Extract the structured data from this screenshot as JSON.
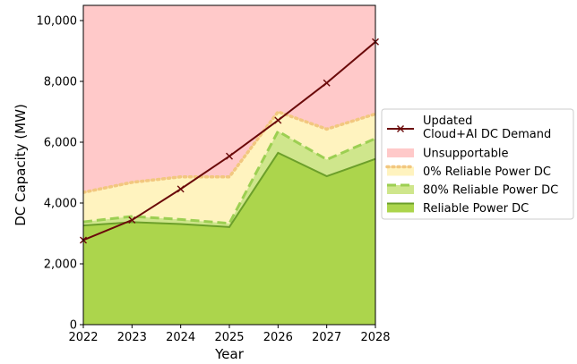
{
  "chart_data": {
    "type": "area",
    "xlabel": "Year",
    "ylabel": "DC Capacity (MW)",
    "x": [
      2022,
      2023,
      2024,
      2025,
      2026,
      2027,
      2028
    ],
    "xlim": [
      2022,
      2028
    ],
    "ylim": [
      0,
      10500
    ],
    "yticks": [
      0,
      2000,
      4000,
      6000,
      8000,
      10000
    ],
    "ytick_labels": [
      "0",
      "2,000",
      "4,000",
      "6,000",
      "8,000",
      "10,000"
    ],
    "xtick_labels": [
      "2022",
      "2023",
      "2024",
      "2025",
      "2026",
      "2027",
      "2028"
    ],
    "grid": false,
    "legend_position": "right",
    "series": [
      {
        "key": "demand",
        "name": "Updated\nCloud+AI DC Demand",
        "name_lines": [
          "Updated",
          "Cloud+AI DC Demand"
        ],
        "kind": "line",
        "marker": "x",
        "color": "#6b0a0a",
        "values": [
          2780,
          3440,
          4460,
          5540,
          6720,
          7950,
          9300
        ]
      },
      {
        "key": "unsupportable",
        "name": "Unsupportable",
        "kind": "fill",
        "color": "#ffc9c9",
        "values": [
          10500,
          10500,
          10500,
          10500,
          10500,
          10500,
          10500
        ]
      },
      {
        "key": "zero_reliable",
        "name": "0% Reliable Power DC",
        "kind": "area",
        "line_style": "dotted",
        "color": "#fff3bf",
        "line_color": "#f2c77f",
        "values": [
          4350,
          4680,
          4860,
          4860,
          7000,
          6430,
          6930
        ]
      },
      {
        "key": "eighty_reliable",
        "name": "80% Reliable Power DC",
        "kind": "area",
        "line_style": "dashed",
        "color": "#cfe68c",
        "line_color": "#9ccf52",
        "values": [
          3380,
          3560,
          3460,
          3330,
          6360,
          5430,
          6120
        ]
      },
      {
        "key": "reliable",
        "name": "Reliable Power DC",
        "kind": "area",
        "line_style": "solid",
        "color": "#acd54c",
        "line_color": "#6c9f2a",
        "values": [
          3260,
          3370,
          3310,
          3210,
          5650,
          4880,
          5450
        ]
      }
    ]
  }
}
